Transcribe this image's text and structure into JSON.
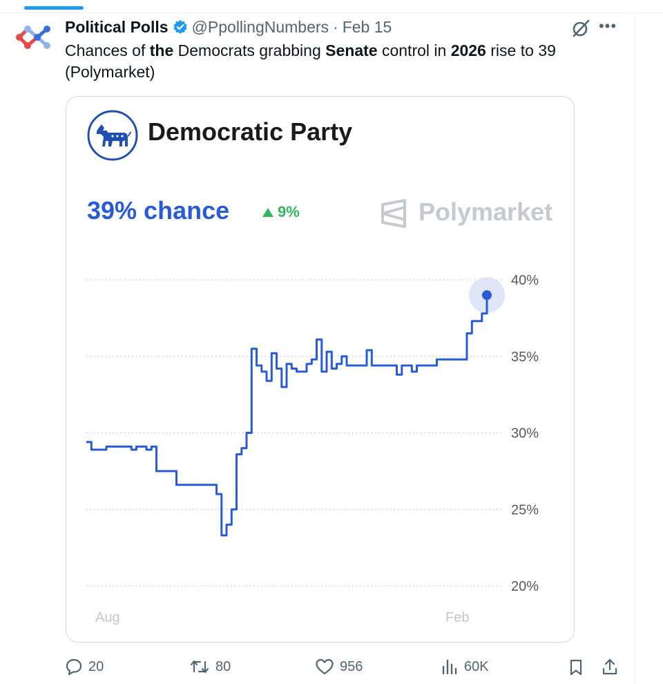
{
  "tweet": {
    "author_name": "Political Polls",
    "handle": "@PpollingNumbers",
    "separator": "·",
    "date": "Feb 15",
    "text_parts": [
      {
        "text": "Chances of ",
        "bold": false
      },
      {
        "text": "the",
        "bold": true
      },
      {
        "text": " Democrats grabbing ",
        "bold": false
      },
      {
        "text": "Senate",
        "bold": true
      },
      {
        "text": " control in ",
        "bold": false
      },
      {
        "text": "2026",
        "bold": true
      },
      {
        "text": " rise to 39 (Polymarket)",
        "bold": false
      }
    ]
  },
  "card": {
    "party_title": "Democratic Party",
    "chance_text": "39% chance",
    "change_text": "9%",
    "brand_text": "Polymarket"
  },
  "actions": {
    "replies": "20",
    "reposts": "80",
    "likes": "956",
    "views": "60K"
  },
  "colors": {
    "line": "#2a5bd7",
    "positive": "#33b55f",
    "brand_gray": "#c6c9cd",
    "muted": "#536471"
  },
  "icons": [
    "verified-badge-icon",
    "grok-icon",
    "more-icon",
    "donkey-logo-icon",
    "polymarket-logo-icon",
    "reply-icon",
    "repost-icon",
    "like-icon",
    "views-icon",
    "bookmark-icon",
    "share-icon"
  ],
  "chart_data": {
    "type": "line",
    "x_tick_labels": [
      "Aug",
      "Feb"
    ],
    "y_tick_labels": [
      "40%",
      "35%",
      "30%",
      "25%",
      "20%"
    ],
    "ylim": [
      20,
      40
    ],
    "y_ticks": [
      40,
      35,
      30,
      25,
      20
    ],
    "grid": "dotted horizontal",
    "last_value": 39,
    "series": [
      {
        "values": [
          29.4,
          28.9,
          28.9,
          28.9,
          29.1,
          29.1,
          29.1,
          29.1,
          29.1,
          28.9,
          29.1,
          29.1,
          28.9,
          29.1,
          27.5,
          27.5,
          27.5,
          27.5,
          26.6,
          26.6,
          26.6,
          26.6,
          26.6,
          26.6,
          26.6,
          26.6,
          26.0,
          23.3,
          24.0,
          25.0,
          28.6,
          29.0,
          30.0,
          35.5,
          34.4,
          34.0,
          33.4,
          35.2,
          34.2,
          33.0,
          34.5,
          34.2,
          34.0,
          34.0,
          34.5,
          34.8,
          36.1,
          34.0,
          35.3,
          34.2,
          34.5,
          35.0,
          34.4,
          34.4,
          34.4,
          34.4,
          35.4,
          34.4,
          34.4,
          34.4,
          34.4,
          34.4,
          33.8,
          34.4,
          34.4,
          34.0,
          34.4,
          34.4,
          34.4,
          34.4,
          34.8,
          34.8,
          34.8,
          34.8,
          34.8,
          34.8,
          36.5,
          37.3,
          37.3,
          37.8,
          39.0
        ]
      }
    ]
  }
}
